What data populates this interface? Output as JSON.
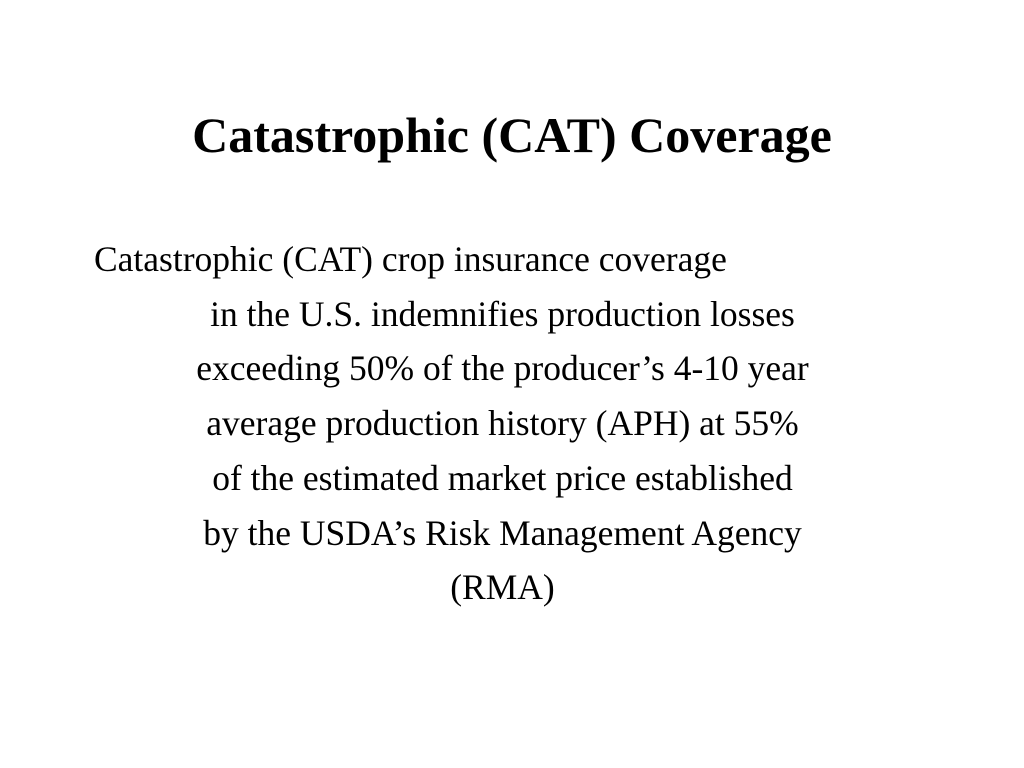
{
  "slide": {
    "title": "Catastrophic (CAT) Coverage",
    "body_lines": [
      "Catastrophic (CAT) crop insurance coverage",
      "in the U.S. indemnifies production losses",
      "exceeding 50% of the producer’s 4-10 year",
      "average production history (APH) at 55%",
      "of the estimated market price established",
      "by the USDA’s Risk Management Agency",
      "(RMA)"
    ]
  }
}
